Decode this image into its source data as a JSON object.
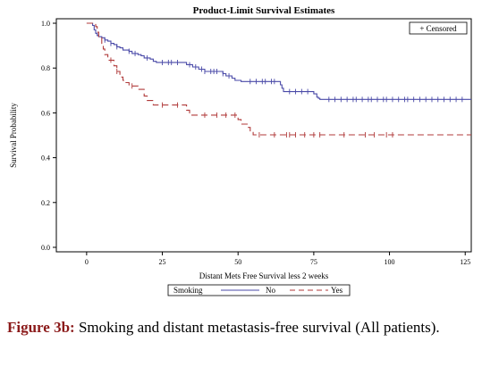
{
  "chart_data": {
    "type": "line",
    "title": "Product-Limit Survival Estimates",
    "xlabel": "Distant Mets Free Survival less 2 weeks",
    "ylabel": "Survival Probability",
    "xlim": [
      -10,
      127
    ],
    "ylim": [
      -0.02,
      1.02
    ],
    "x_ticks": [
      0,
      25,
      50,
      75,
      100,
      125
    ],
    "y_ticks": [
      0.0,
      0.2,
      0.4,
      0.6,
      0.8,
      1.0
    ],
    "y_tick_labels": [
      "0.0",
      "0.2",
      "0.4",
      "0.6",
      "0.8",
      "1.0"
    ],
    "grid": false,
    "censored_legend": "+ Censored",
    "legend": {
      "title": "Smoking",
      "position": "bottom"
    },
    "series": [
      {
        "name": "No",
        "color": "#4a4aa8",
        "dash": "solid",
        "steps": [
          [
            0,
            1.0
          ],
          [
            2,
            0.99
          ],
          [
            2.5,
            0.97
          ],
          [
            3,
            0.955
          ],
          [
            3.5,
            0.945
          ],
          [
            4,
            0.94
          ],
          [
            5,
            0.935
          ],
          [
            6,
            0.925
          ],
          [
            7,
            0.92
          ],
          [
            8,
            0.91
          ],
          [
            9,
            0.905
          ],
          [
            10,
            0.895
          ],
          [
            11,
            0.89
          ],
          [
            12,
            0.88
          ],
          [
            14,
            0.875
          ],
          [
            15,
            0.865
          ],
          [
            17,
            0.86
          ],
          [
            18,
            0.855
          ],
          [
            19,
            0.845
          ],
          [
            21,
            0.84
          ],
          [
            22,
            0.83
          ],
          [
            23,
            0.825
          ],
          [
            33,
            0.815
          ],
          [
            35,
            0.805
          ],
          [
            37,
            0.795
          ],
          [
            39,
            0.785
          ],
          [
            45,
            0.775
          ],
          [
            46,
            0.765
          ],
          [
            48,
            0.755
          ],
          [
            49,
            0.745
          ],
          [
            51,
            0.74
          ],
          [
            64,
            0.725
          ],
          [
            64.5,
            0.71
          ],
          [
            65,
            0.695
          ],
          [
            75,
            0.685
          ],
          [
            76,
            0.67
          ],
          [
            76.5,
            0.665
          ],
          [
            77,
            0.66
          ],
          [
            127,
            0.66
          ]
        ],
        "censored_x": [
          6,
          8,
          10,
          14,
          16,
          20,
          25,
          27,
          28,
          30,
          34,
          36,
          38,
          39,
          41,
          42,
          43,
          45,
          47,
          54,
          56,
          58,
          59,
          61,
          62,
          67,
          69,
          71,
          73,
          80,
          82,
          84,
          86,
          88,
          89,
          91,
          93,
          94,
          96,
          98,
          99,
          101,
          103,
          105,
          106,
          108,
          110,
          112,
          114,
          116,
          118,
          120,
          122,
          124
        ]
      },
      {
        "name": "Yes",
        "color": "#b03a3a",
        "dash": "dashed",
        "steps": [
          [
            0,
            1.0
          ],
          [
            3,
            0.985
          ],
          [
            3.5,
            0.96
          ],
          [
            4,
            0.935
          ],
          [
            5,
            0.91
          ],
          [
            5.5,
            0.885
          ],
          [
            6,
            0.86
          ],
          [
            7,
            0.835
          ],
          [
            9,
            0.81
          ],
          [
            10,
            0.785
          ],
          [
            11,
            0.76
          ],
          [
            12,
            0.745
          ],
          [
            13,
            0.735
          ],
          [
            14,
            0.72
          ],
          [
            17,
            0.705
          ],
          [
            19,
            0.675
          ],
          [
            20,
            0.655
          ],
          [
            22,
            0.635
          ],
          [
            33,
            0.612
          ],
          [
            34,
            0.59
          ],
          [
            50,
            0.57
          ],
          [
            51,
            0.55
          ],
          [
            53,
            0.535
          ],
          [
            54,
            0.515
          ],
          [
            55,
            0.502
          ],
          [
            127,
            0.502
          ]
        ],
        "censored_x": [
          8,
          10,
          15,
          25,
          30,
          39,
          43,
          46,
          49,
          57,
          62,
          66,
          67,
          69,
          72,
          75,
          77,
          85,
          92,
          95,
          99,
          101
        ]
      }
    ]
  },
  "caption": {
    "label": "Figure 3b:",
    "text": " Smoking and distant metastasis-free survival (All patients)."
  }
}
